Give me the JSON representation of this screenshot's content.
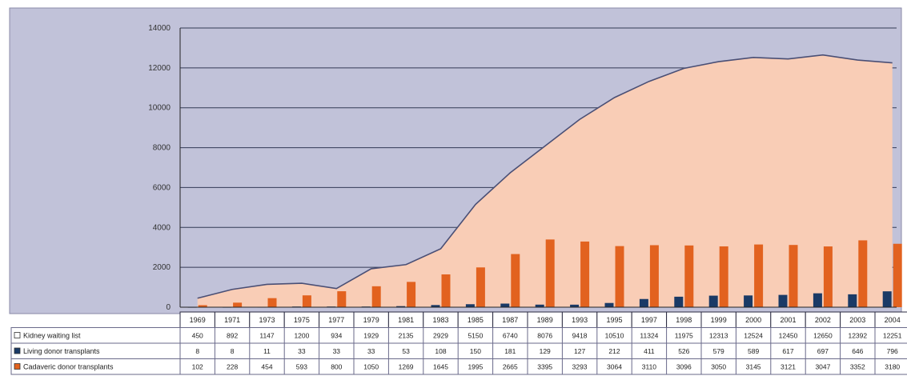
{
  "chart_data": {
    "type": "bar",
    "title": "",
    "xlabel": "",
    "ylabel": "",
    "ylim": [
      0,
      14000
    ],
    "yticks": [
      "0",
      "2000",
      "4000",
      "6000",
      "8000",
      "10000",
      "12000",
      "14000"
    ],
    "grid": true,
    "legend_placement": "data table, bottom-left",
    "categories": [
      "1969",
      "1971",
      "1973",
      "1975",
      "1977",
      "1979",
      "1981",
      "1983",
      "1985",
      "1987",
      "1989",
      "1993",
      "1995",
      "1997",
      "1998",
      "1999",
      "2000",
      "2001",
      "2002",
      "2003",
      "2004"
    ],
    "series": [
      {
        "name": "Kidney waiting list",
        "render": "area",
        "color": "#f9cdb6",
        "values": [
          450,
          892,
          1147,
          1200,
          934,
          1929,
          2135,
          2929,
          5150,
          6740,
          8076,
          9418,
          10510,
          11324,
          11975,
          12313,
          12524,
          12450,
          12650,
          12392,
          12251
        ]
      },
      {
        "name": "Living donor transplants",
        "render": "bar",
        "color": "#1a3a66",
        "values": [
          8,
          8,
          11,
          33,
          33,
          33,
          53,
          108,
          150,
          181,
          129,
          127,
          212,
          411,
          526,
          579,
          589,
          617,
          697,
          646,
          796
        ]
      },
      {
        "name": "Cadaveric donor transplants",
        "render": "bar",
        "color": "#e2621f",
        "values": [
          102,
          228,
          454,
          593,
          800,
          1050,
          1269,
          1645,
          1995,
          2665,
          3395,
          3293,
          3064,
          3110,
          3096,
          3050,
          3145,
          3121,
          3047,
          3352,
          3180
        ]
      }
    ]
  },
  "colors": {
    "plot_background": "#c1c2d9",
    "area_line": "#4a4f75",
    "grid": "#333a55"
  }
}
